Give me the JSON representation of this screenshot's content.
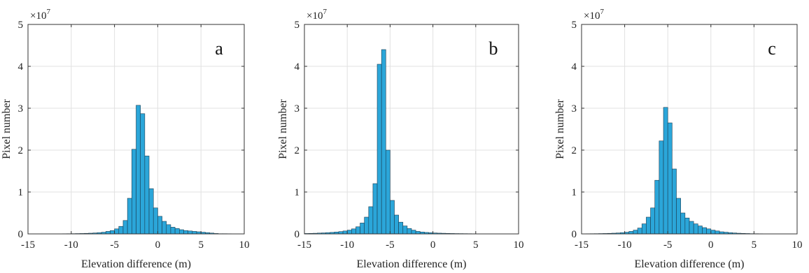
{
  "chart_data": [
    {
      "type": "bar",
      "panel_label": "a",
      "xlabel": "Elevation difference (m)",
      "ylabel": "Pixel number",
      "exponent_base": "×10",
      "exponent_power": "7",
      "xlim": [
        -15,
        10
      ],
      "ylim": [
        0,
        5
      ],
      "xticks": [
        "-15",
        "-10",
        "-5",
        "0",
        "5",
        "10"
      ],
      "yticks": [
        "0",
        "1",
        "2",
        "3",
        "4",
        "5"
      ],
      "grid": true,
      "bar_color": "#2ba6d9",
      "bin_start": -15,
      "bin_width": 0.5,
      "values": [
        0.002,
        0.002,
        0.002,
        0.002,
        0.002,
        0.002,
        0.003,
        0.003,
        0.004,
        0.005,
        0.006,
        0.008,
        0.01,
        0.013,
        0.017,
        0.022,
        0.03,
        0.04,
        0.06,
        0.08,
        0.12,
        0.18,
        0.32,
        0.85,
        2.02,
        3.07,
        2.87,
        1.86,
        1.08,
        0.62,
        0.42,
        0.3,
        0.22,
        0.16,
        0.13,
        0.1,
        0.08,
        0.07,
        0.06,
        0.05,
        0.04,
        0.03,
        0.02,
        0.01,
        0.005,
        0.005,
        0.004,
        0.003,
        0.002,
        0.002
      ]
    },
    {
      "type": "bar",
      "panel_label": "b",
      "xlabel": "Elevation difference (m)",
      "ylabel": "Pixel number",
      "exponent_base": "×10",
      "exponent_power": "7",
      "xlim": [
        -15,
        10
      ],
      "ylim": [
        0,
        5
      ],
      "xticks": [
        "-15",
        "-10",
        "-5",
        "0",
        "5",
        "10"
      ],
      "yticks": [
        "0",
        "1",
        "2",
        "3",
        "4",
        "5"
      ],
      "grid": true,
      "bar_color": "#2ba6d9",
      "bin_start": -15,
      "bin_width": 0.5,
      "values": [
        0.01,
        0.012,
        0.015,
        0.02,
        0.024,
        0.03,
        0.036,
        0.045,
        0.055,
        0.07,
        0.09,
        0.12,
        0.17,
        0.26,
        0.4,
        0.65,
        1.2,
        4.05,
        4.4,
        2.0,
        0.8,
        0.45,
        0.28,
        0.19,
        0.13,
        0.09,
        0.06,
        0.045,
        0.035,
        0.028,
        0.022,
        0.018,
        0.015,
        0.012,
        0.01,
        0.008,
        0.007,
        0.006,
        0.005,
        0.004,
        0.003,
        0.003,
        0.002,
        0.002,
        0.002,
        0.001,
        0.001,
        0.001,
        0.001,
        0.001
      ]
    },
    {
      "type": "bar",
      "panel_label": "c",
      "xlabel": "Elevation difference (m)",
      "ylabel": "Pixel number",
      "exponent_base": "×10",
      "exponent_power": "7",
      "xlim": [
        -15,
        10
      ],
      "ylim": [
        0,
        5
      ],
      "xticks": [
        "-15",
        "-10",
        "-5",
        "0",
        "5",
        "10"
      ],
      "yticks": [
        "0",
        "1",
        "2",
        "3",
        "4",
        "5"
      ],
      "grid": true,
      "bar_color": "#2ba6d9",
      "bin_start": -15,
      "bin_width": 0.5,
      "values": [
        0.003,
        0.004,
        0.005,
        0.006,
        0.008,
        0.01,
        0.013,
        0.017,
        0.022,
        0.03,
        0.04,
        0.06,
        0.09,
        0.14,
        0.24,
        0.4,
        0.62,
        1.28,
        2.22,
        3.02,
        2.65,
        1.55,
        0.85,
        0.5,
        0.38,
        0.3,
        0.24,
        0.19,
        0.15,
        0.12,
        0.09,
        0.07,
        0.05,
        0.04,
        0.03,
        0.022,
        0.016,
        0.012,
        0.009,
        0.006,
        0.005,
        0.004,
        0.003,
        0.002,
        0.002,
        0.002,
        0.001,
        0.001,
        0.001,
        0.001
      ]
    }
  ]
}
